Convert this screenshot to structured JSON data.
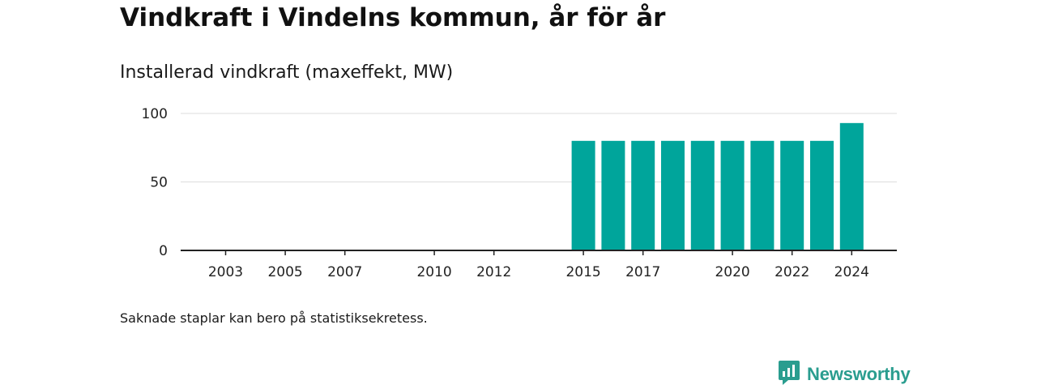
{
  "title": "Vindkraft i Vindelns kommun, år för år",
  "subtitle": "Installerad vindkraft (maxeffekt, MW)",
  "footnote": "Saknade staplar kan bero på statistiksekretess.",
  "brand": {
    "name": "Newsworthy",
    "color": "#2a9d8f",
    "icon": "newsworthy-logo-icon"
  },
  "colors": {
    "bar": "#00a59b",
    "grid": "#dddddd",
    "axis": "#222222"
  },
  "chart_data": {
    "type": "bar",
    "x": [
      2003,
      2004,
      2005,
      2006,
      2007,
      2008,
      2009,
      2010,
      2011,
      2012,
      2013,
      2014,
      2015,
      2016,
      2017,
      2018,
      2019,
      2020,
      2021,
      2022,
      2023,
      2024
    ],
    "values": [
      0,
      0,
      0,
      0,
      0,
      0,
      0,
      0,
      0,
      0,
      null,
      null,
      80,
      80,
      80,
      80,
      80,
      80,
      80,
      80,
      80,
      93
    ],
    "x_tick_labels": [
      "2003",
      "2005",
      "2007",
      "2010",
      "2012",
      "2015",
      "2017",
      "2020",
      "2022",
      "2024"
    ],
    "y_ticks": [
      0,
      50,
      100
    ],
    "ylim": [
      0,
      100
    ],
    "title": "",
    "xlabel": "",
    "ylabel": "",
    "grid": true
  }
}
